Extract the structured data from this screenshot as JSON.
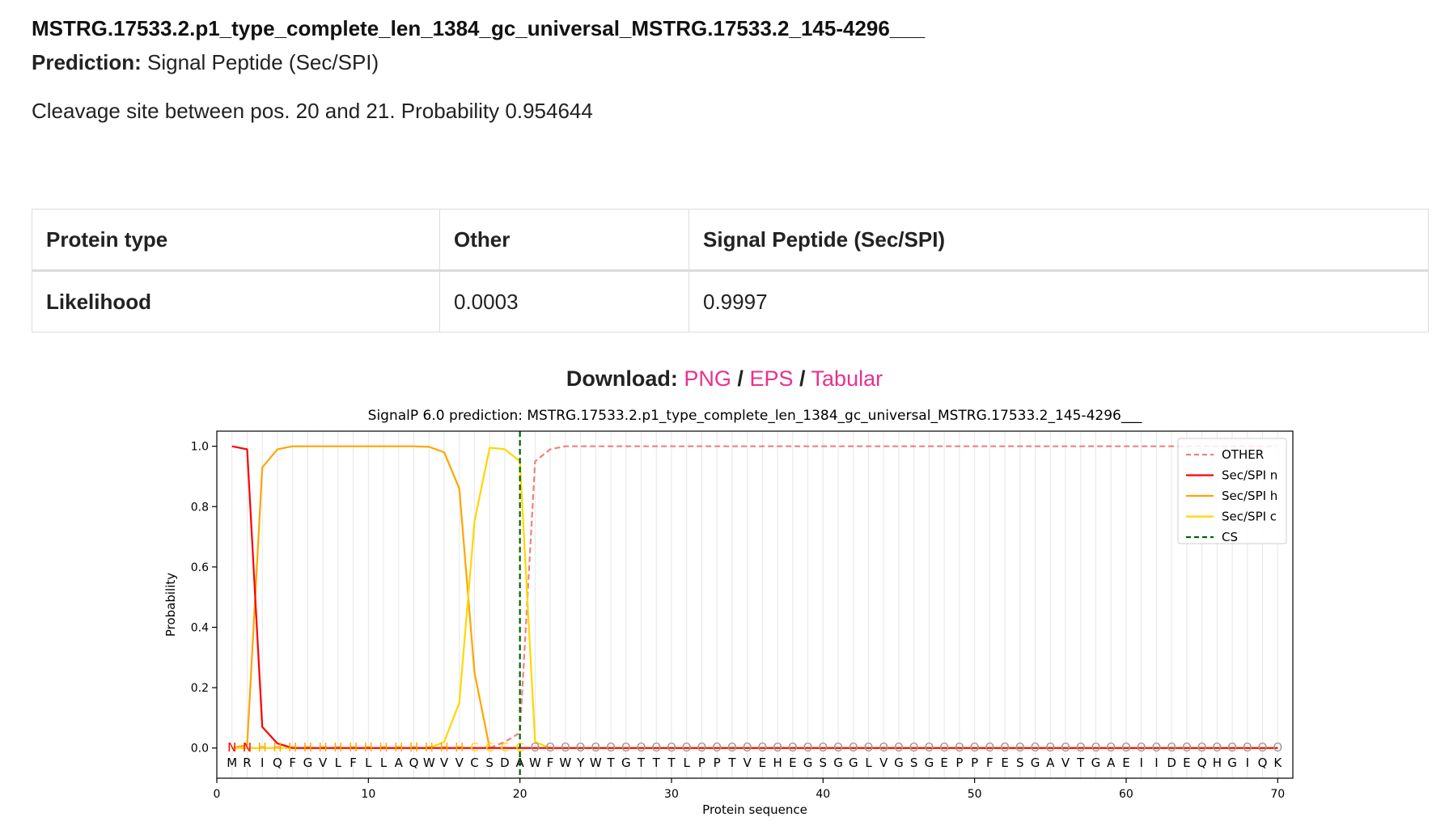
{
  "header": {
    "sequence_name": "MSTRG.17533.2.p1_type_complete_len_1384_gc_universal_MSTRG.17533.2_145-4296___",
    "prediction_label": "Prediction:",
    "prediction_value": "Signal Peptide (Sec/SPI)",
    "cleavage_text": "Cleavage site between pos. 20 and 21. Probability 0.954644"
  },
  "table": {
    "header": [
      "Protein type",
      "Other",
      "Signal Peptide (Sec/SPI)"
    ],
    "row": [
      "Likelihood",
      "0.0003",
      "0.9997"
    ]
  },
  "download": {
    "label": "Download:",
    "links": [
      "PNG",
      "EPS",
      "Tabular"
    ],
    "separator": "/",
    "link_color": "#e8318f"
  },
  "chart_data": {
    "type": "line",
    "title": "SignalP 6.0 prediction: MSTRG.17533.2.p1_type_complete_len_1384_gc_universal_MSTRG.17533.2_145-4296___",
    "xlabel": "Protein sequence",
    "ylabel": "Probability",
    "xlim": [
      0,
      71
    ],
    "ylim": [
      -0.1,
      1.05
    ],
    "xticks": [
      0,
      10,
      20,
      30,
      40,
      50,
      60,
      70
    ],
    "yticks": [
      "0.0",
      "0.2",
      "0.4",
      "0.6",
      "0.8",
      "1.0"
    ],
    "legend_position": "top-right",
    "grid": "vertical",
    "sequence": "MRIQFGVLFLLAQWVVCSDAWFWYWTGTTTLPPTVEHEGSGGLVGSGEPPFESGAVTGAEIIDEQHGIQK",
    "region_labels": "NNHHHHHHHHHHHHHHCCCCOOOOOOOOOOOOOOOOOOOOOOOOOOOOOOOOOOOOOOOOOOOOOOOOOO",
    "region_colors": {
      "N": "#ff0000",
      "H": "#ffa500",
      "C": "#ffd700",
      "O": "#999999"
    },
    "cleavage_site": 20,
    "series": [
      {
        "name": "OTHER",
        "color": "#f08080",
        "dash": true,
        "values": [
          0,
          0,
          0,
          0,
          0,
          0,
          0,
          0,
          0,
          0,
          0,
          0,
          0,
          0,
          0,
          0,
          0,
          0,
          0.02,
          0.05,
          0.95,
          0.99,
          1,
          1,
          1,
          1,
          1,
          1,
          1,
          1,
          1,
          1,
          1,
          1,
          1,
          1,
          1,
          1,
          1,
          1,
          1,
          1,
          1,
          1,
          1,
          1,
          1,
          1,
          1,
          1,
          1,
          1,
          1,
          1,
          1,
          1,
          1,
          1,
          1,
          1,
          1,
          1,
          1,
          1,
          1,
          1,
          1,
          1,
          1,
          1
        ]
      },
      {
        "name": "Sec/SPI n",
        "color": "#ff0000",
        "dash": false,
        "values": [
          1.0,
          0.99,
          0.07,
          0.015,
          0,
          0,
          0,
          0,
          0,
          0,
          0,
          0,
          0,
          0,
          0,
          0,
          0,
          0,
          0,
          0,
          0,
          0,
          0,
          0,
          0,
          0,
          0,
          0,
          0,
          0,
          0,
          0,
          0,
          0,
          0,
          0,
          0,
          0,
          0,
          0,
          0,
          0,
          0,
          0,
          0,
          0,
          0,
          0,
          0,
          0,
          0,
          0,
          0,
          0,
          0,
          0,
          0,
          0,
          0,
          0,
          0,
          0,
          0,
          0,
          0,
          0,
          0,
          0,
          0,
          0
        ]
      },
      {
        "name": "Sec/SPI h",
        "color": "#ffa500",
        "dash": false,
        "values": [
          0,
          0.01,
          0.93,
          0.99,
          1,
          1,
          1,
          1,
          1,
          1,
          1,
          1,
          1,
          0.998,
          0.98,
          0.86,
          0.25,
          0,
          0,
          0,
          0,
          0,
          0,
          0,
          0,
          0,
          0,
          0,
          0,
          0,
          0,
          0,
          0,
          0,
          0,
          0,
          0,
          0,
          0,
          0,
          0,
          0,
          0,
          0,
          0,
          0,
          0,
          0,
          0,
          0,
          0,
          0,
          0,
          0,
          0,
          0,
          0,
          0,
          0,
          0,
          0,
          0,
          0,
          0,
          0,
          0,
          0,
          0,
          0,
          0
        ]
      },
      {
        "name": "Sec/SPI c",
        "color": "#ffd700",
        "dash": false,
        "values": [
          0,
          0,
          0,
          0,
          0,
          0,
          0,
          0,
          0,
          0,
          0,
          0,
          0,
          0,
          0.02,
          0.15,
          0.75,
          0.995,
          0.99,
          0.95,
          0.02,
          0,
          0,
          0,
          0,
          0,
          0,
          0,
          0,
          0,
          0,
          0,
          0,
          0,
          0,
          0,
          0,
          0,
          0,
          0,
          0,
          0,
          0,
          0,
          0,
          0,
          0,
          0,
          0,
          0,
          0,
          0,
          0,
          0,
          0,
          0,
          0,
          0,
          0,
          0,
          0,
          0,
          0,
          0,
          0,
          0,
          0,
          0,
          0,
          0
        ]
      },
      {
        "name": "CS",
        "color": "#006400",
        "dash": true,
        "values": []
      }
    ]
  }
}
